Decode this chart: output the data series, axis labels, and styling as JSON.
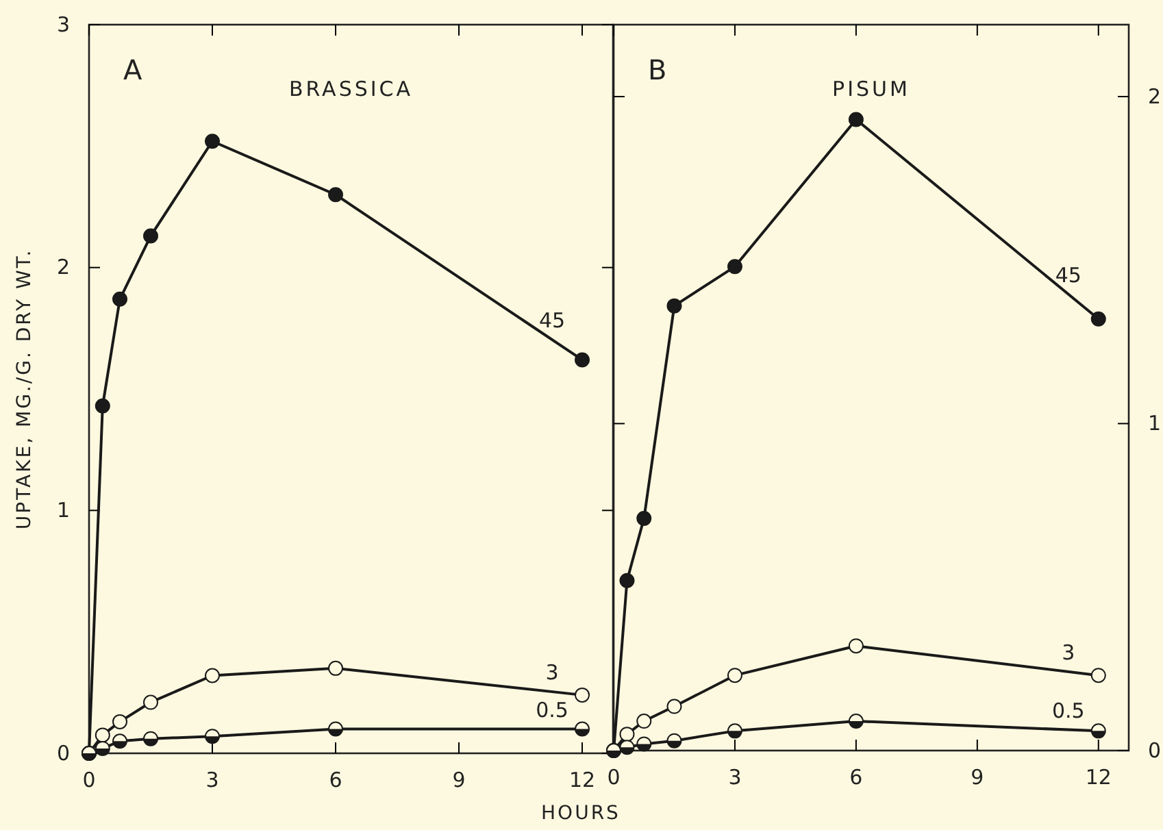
{
  "chart_data": [
    {
      "type": "line",
      "title": "BRASSICA",
      "xlabel": "HOURS",
      "ylabel": "UPTAKE, MG./G. DRY WT.",
      "annotations": [
        "A"
      ],
      "xlim": [
        0,
        12.75
      ],
      "xticks": [
        0,
        3,
        6,
        9,
        12
      ],
      "ylim": [
        0,
        3
      ],
      "yticks": [
        0,
        1,
        2,
        3
      ],
      "marker": "circle",
      "x": [
        0,
        0.33,
        0.75,
        1.5,
        3,
        6,
        12
      ],
      "series": [
        {
          "name": "45",
          "color": "#1a1a1a",
          "values": [
            0,
            1.43,
            1.87,
            2.13,
            2.52,
            2.3,
            1.62
          ]
        },
        {
          "name": "3",
          "color": "#1a1a1a",
          "values": [
            0,
            0.075,
            0.13,
            0.21,
            0.32,
            0.35,
            0.24
          ]
        },
        {
          "name": "0.5",
          "color": "#1a1a1a",
          "values": [
            0,
            0.02,
            0.05,
            0.06,
            0.07,
            0.1,
            0.1
          ]
        }
      ]
    },
    {
      "type": "line",
      "title": "PISUM",
      "annotations": [
        "B"
      ],
      "xlim": [
        0,
        12.75
      ],
      "xticks": [
        0,
        3,
        6,
        9,
        12
      ],
      "y2lim": [
        0,
        2.22
      ],
      "y2ticks": [
        0,
        1,
        2
      ],
      "marker": "circle",
      "x": [
        0,
        0.33,
        0.75,
        1.5,
        3,
        6,
        12
      ],
      "series": [
        {
          "name": "45",
          "color": "#1a1a1a",
          "axis": "y2",
          "values": [
            0,
            0.52,
            0.71,
            1.36,
            1.48,
            1.93,
            1.32
          ]
        },
        {
          "name": "3",
          "color": "#1a1a1a",
          "axis": "y2",
          "values": [
            0,
            0.05,
            0.09,
            0.135,
            0.23,
            0.32,
            0.23
          ]
        },
        {
          "name": "0.5",
          "color": "#1a1a1a",
          "axis": "y2",
          "values": [
            0,
            0.01,
            0.02,
            0.03,
            0.06,
            0.09,
            0.06
          ]
        }
      ]
    }
  ]
}
